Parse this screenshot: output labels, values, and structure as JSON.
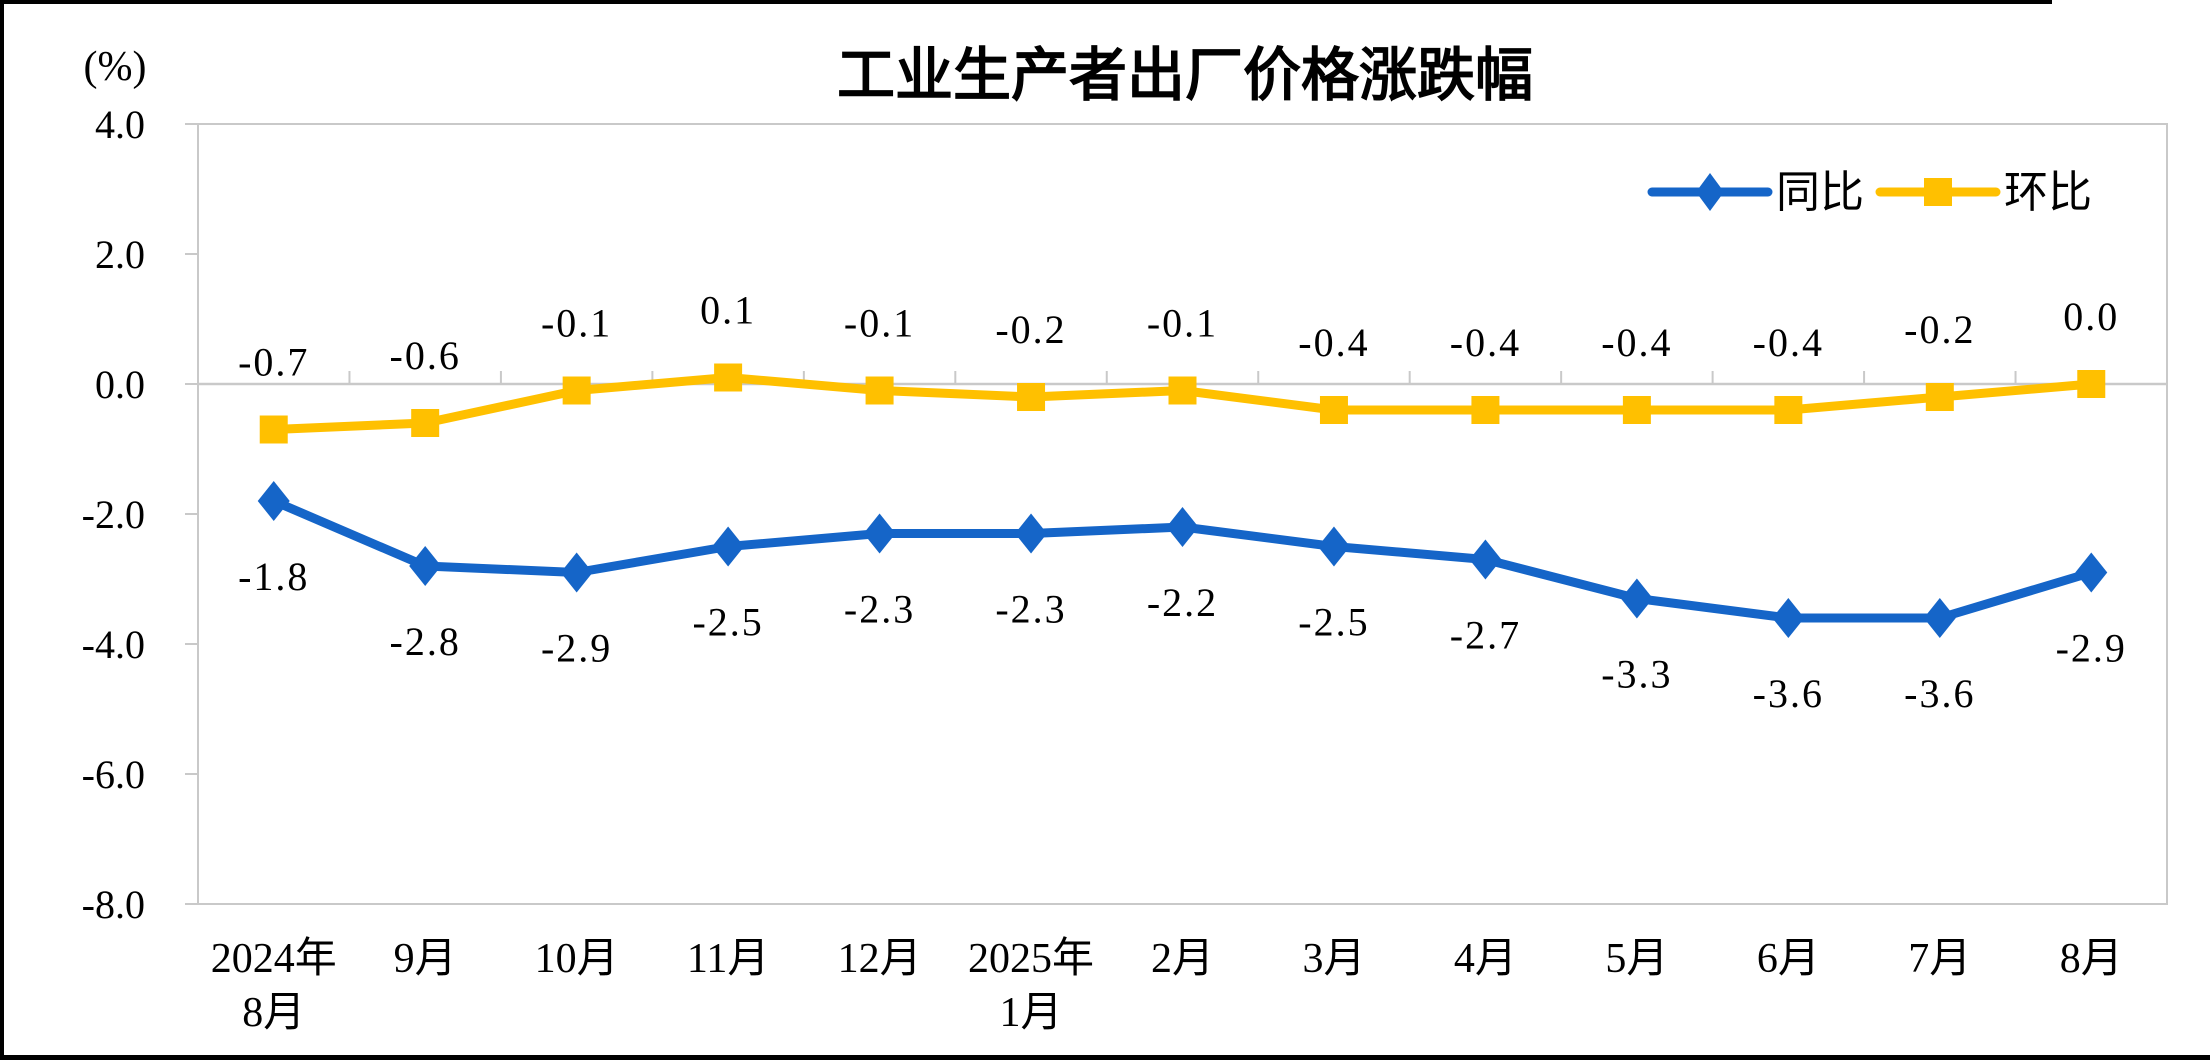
{
  "title": "工业生产者出厂价格涨跌幅",
  "unit_label": "(%)",
  "legend": [
    {
      "label": "同比",
      "color": "#1565C8",
      "marker": "diamond"
    },
    {
      "label": "环比",
      "color": "#FFC000",
      "marker": "square"
    }
  ],
  "colors": {
    "series_yoy_blue": "#1565C8",
    "series_mom_yellow": "#FFC000",
    "axis_gray": "#C9C9C9",
    "text_black": "#000000",
    "background": "#FFFFFF",
    "window_border": "#000000"
  },
  "chart_data": {
    "type": "line",
    "categories": [
      "2024年8月",
      "9月",
      "10月",
      "11月",
      "12月",
      "2025年1月",
      "2月",
      "3月",
      "4月",
      "5月",
      "6月",
      "7月",
      "8月"
    ],
    "category_label_lines": [
      [
        "2024年",
        "8月"
      ],
      [
        "9月"
      ],
      [
        "10月"
      ],
      [
        "11月"
      ],
      [
        "12月"
      ],
      [
        "2025年",
        "1月"
      ],
      [
        "2月"
      ],
      [
        "3月"
      ],
      [
        "4月"
      ],
      [
        "5月"
      ],
      [
        "6月"
      ],
      [
        "7月"
      ],
      [
        "8月"
      ]
    ],
    "series": [
      {
        "name": "同比",
        "color": "#1565C8",
        "marker": "diamond",
        "label_position": "below",
        "values": [
          -1.8,
          -2.8,
          -2.9,
          -2.5,
          -2.3,
          -2.3,
          -2.2,
          -2.5,
          -2.7,
          -3.3,
          -3.6,
          -3.6,
          -2.9
        ]
      },
      {
        "name": "环比",
        "color": "#FFC000",
        "marker": "square",
        "label_position": "above",
        "values": [
          -0.7,
          -0.6,
          -0.1,
          0.1,
          -0.1,
          -0.2,
          -0.1,
          -0.4,
          -0.4,
          -0.4,
          -0.4,
          -0.2,
          0.0
        ]
      }
    ],
    "title": "工业生产者出厂价格涨跌幅",
    "xlabel": "",
    "ylabel": "(%)",
    "ylim": [
      -8.0,
      4.0
    ],
    "ytick_labels": [
      "4.0",
      "2.0",
      "0.0",
      "-2.0",
      "-4.0",
      "-6.0",
      "-8.0"
    ],
    "ytick_values": [
      4.0,
      2.0,
      0.0,
      -2.0,
      -4.0,
      -6.0,
      -8.0
    ],
    "grid": false,
    "zero_axis_line": true,
    "legend_position": "top-right"
  }
}
